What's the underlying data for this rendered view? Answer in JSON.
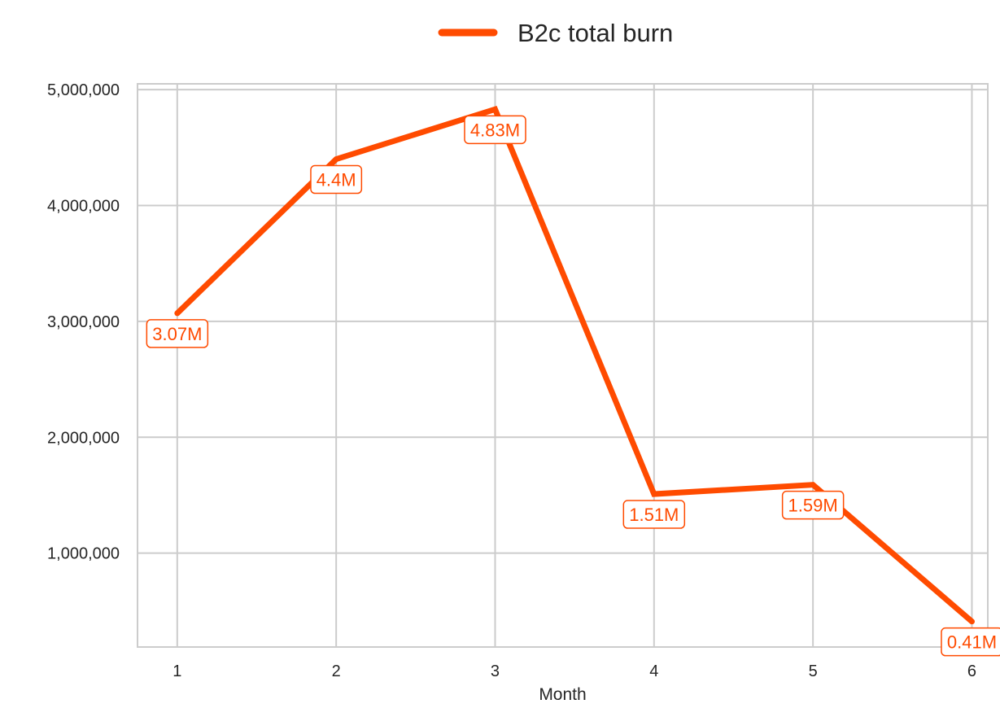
{
  "chart_data": {
    "type": "line",
    "title": "",
    "xlabel": "Month",
    "ylabel": "",
    "x": [
      1,
      2,
      3,
      4,
      5,
      6
    ],
    "xticks": [
      "1",
      "2",
      "3",
      "4",
      "5",
      "6"
    ],
    "yticks": [
      1000000,
      2000000,
      3000000,
      4000000,
      5000000
    ],
    "ytick_labels": [
      "1,000,000",
      "2,000,000",
      "3,000,000",
      "4,000,000",
      "5,000,000"
    ],
    "xlim": [
      0.75,
      6.1
    ],
    "ylim": [
      190000,
      5050000
    ],
    "grid": true,
    "legend_position": "top-center",
    "series": [
      {
        "name": "B2c total burn",
        "color": "#FF4B00",
        "values": [
          3070000,
          4400000,
          4830000,
          1510000,
          1590000,
          410000
        ],
        "labels": [
          "3.07M",
          "4.4M",
          "4.83M",
          "1.51M",
          "1.59M",
          "0.41M"
        ]
      }
    ]
  }
}
